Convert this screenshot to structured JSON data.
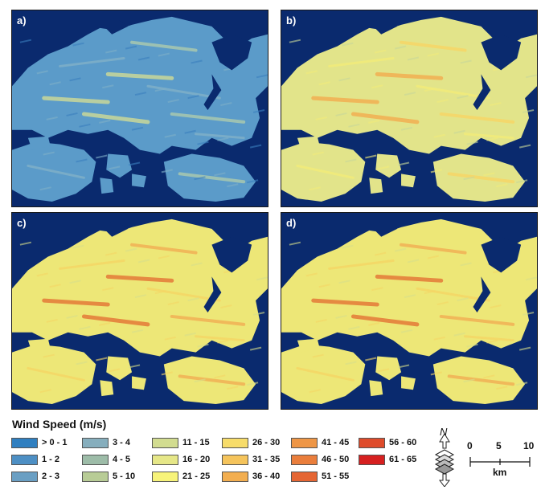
{
  "panels": [
    {
      "id": "a",
      "label": "a)",
      "palette": [
        "#3b7fbf",
        "#5b9bc9",
        "#7fb0c8",
        "#a8c8b0",
        "#c9d89a"
      ]
    },
    {
      "id": "b",
      "label": "b)",
      "palette": [
        "#c9d89a",
        "#e2e48a",
        "#f2ec7a",
        "#f7d667",
        "#f2b052"
      ]
    },
    {
      "id": "c",
      "label": "c)",
      "palette": [
        "#d8df8a",
        "#ede777",
        "#f5d766",
        "#f1b155",
        "#e47a38"
      ]
    },
    {
      "id": "d",
      "label": "d)",
      "palette": [
        "#d8df8a",
        "#ede777",
        "#f5d766",
        "#f1b155",
        "#e47a38"
      ]
    }
  ],
  "legend": {
    "title": "Wind Speed (m/s)",
    "items": [
      {
        "label": "> 0  - 1",
        "color": "#2f7fc0"
      },
      {
        "label": "1 - 2",
        "color": "#4d8fc4"
      },
      {
        "label": "2 - 3",
        "color": "#6a9fc3"
      },
      {
        "label": "3 - 4",
        "color": "#86aebd"
      },
      {
        "label": "4 - 5",
        "color": "#9dbca8"
      },
      {
        "label": "5 - 10",
        "color": "#b8cc96"
      },
      {
        "label": "11 - 15",
        "color": "#d2dc90"
      },
      {
        "label": "16 - 20",
        "color": "#e6e788"
      },
      {
        "label": "21 - 25",
        "color": "#f7f37a"
      },
      {
        "label": "26 - 30",
        "color": "#f7dc6a"
      },
      {
        "label": "31 - 35",
        "color": "#f5c45c"
      },
      {
        "label": "36 - 40",
        "color": "#f2ae50"
      },
      {
        "label": "41 - 45",
        "color": "#ee9646"
      },
      {
        "label": "46 - 50",
        "color": "#ea7e3c"
      },
      {
        "label": "51 - 55",
        "color": "#e56634"
      },
      {
        "label": "56 - 60",
        "color": "#de4b2b"
      },
      {
        "label": "61 - 65",
        "color": "#d62020"
      }
    ]
  },
  "north_arrow": {
    "letter": "N"
  },
  "scale_bar": {
    "ticks": [
      "0",
      "5",
      "10"
    ],
    "unit": "km"
  },
  "colors": {
    "sea": "#0a2a6e"
  }
}
